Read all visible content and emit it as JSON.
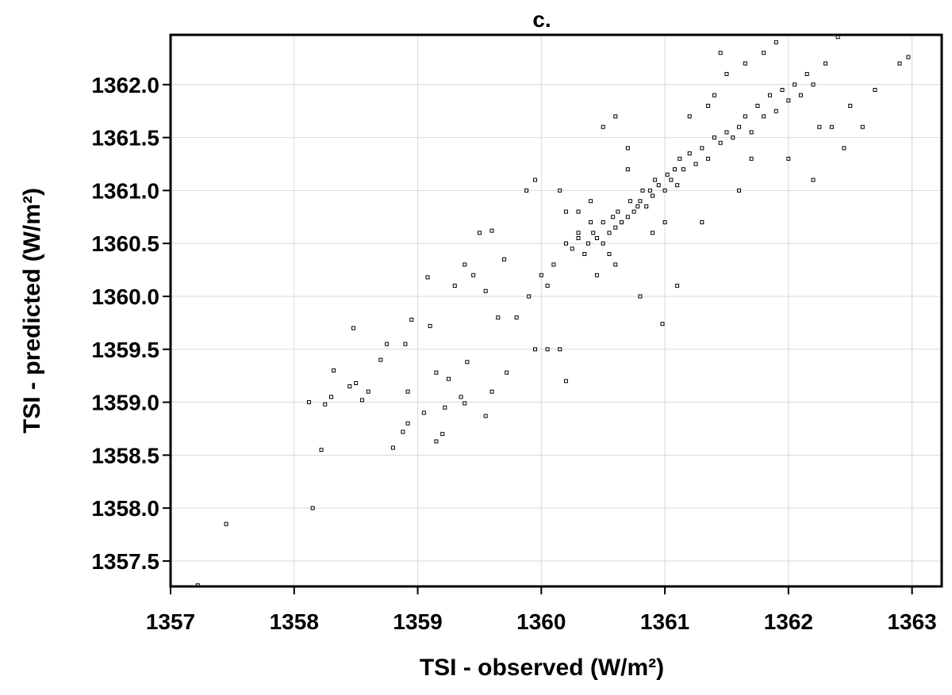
{
  "chart_data": {
    "type": "scatter",
    "title": "c.",
    "xlabel": "TSI - observed (W/m²)",
    "ylabel": "TSI - predicted (W/m²)",
    "color": "#000000",
    "grid": true,
    "xlim": [
      1357,
      1363.24
    ],
    "ylim": [
      1357.26,
      1362.47
    ],
    "xticks": [
      1357,
      1358,
      1359,
      1360,
      1361,
      1362,
      1363
    ],
    "yticks": [
      {
        "value": 1357.5,
        "label": "1357.5"
      },
      {
        "value": 1358,
        "label": "1358.0"
      },
      {
        "value": 1358.5,
        "label": "1358.5"
      },
      {
        "value": 1359,
        "label": "1359.0"
      },
      {
        "value": 1359.5,
        "label": "1359.5"
      },
      {
        "value": 1360,
        "label": "1360.0"
      },
      {
        "value": 1360.5,
        "label": "1360.5"
      },
      {
        "value": 1361,
        "label": "1361.0"
      },
      {
        "value": 1361.5,
        "label": "1361.5"
      },
      {
        "value": 1362,
        "label": "1362.0"
      }
    ],
    "x": [
      1357.22,
      1357.45,
      1358.15,
      1358.22,
      1358.12,
      1358.25,
      1358.3,
      1358.32,
      1358.48,
      1358.45,
      1358.5,
      1358.55,
      1358.6,
      1358.8,
      1358.75,
      1358.7,
      1358.88,
      1358.92,
      1358.95,
      1358.9,
      1358.92,
      1359.05,
      1359.1,
      1359.15,
      1359.15,
      1359.2,
      1359.22,
      1359.08,
      1359.25,
      1359.35,
      1359.38,
      1359.4,
      1359.55,
      1359.6,
      1359.72,
      1359.5,
      1359.6,
      1359.38,
      1359.45,
      1359.65,
      1359.8,
      1359.9,
      1359.95,
      1360.05,
      1360.15,
      1360.2,
      1359.88,
      1359.95,
      1360.0,
      1360.1,
      1360.2,
      1360.3,
      1360.35,
      1360.4,
      1360.25,
      1360.3,
      1360.38,
      1360.42,
      1360.45,
      1360.5,
      1360.5,
      1360.55,
      1360.58,
      1360.6,
      1360.62,
      1360.65,
      1360.7,
      1360.72,
      1360.75,
      1360.78,
      1360.8,
      1360.82,
      1360.85,
      1360.88,
      1360.9,
      1360.92,
      1360.95,
      1361.0,
      1361.02,
      1361.05,
      1361.08,
      1361.1,
      1361.12,
      1361.15,
      1361.2,
      1361.25,
      1361.3,
      1361.35,
      1361.4,
      1361.45,
      1361.5,
      1361.55,
      1361.6,
      1361.65,
      1361.7,
      1361.75,
      1361.8,
      1361.85,
      1361.9,
      1361.95,
      1362.0,
      1362.05,
      1362.1,
      1362.15,
      1362.2,
      1362.3,
      1362.4,
      1362.5,
      1362.6,
      1362.7,
      1362.9,
      1362.97,
      1361.8,
      1361.5,
      1360.98,
      1360.8,
      1361.1,
      1360.5,
      1360.6,
      1359.3,
      1360.4,
      1360.7,
      1361.3,
      1361.6,
      1362.0,
      1362.25,
      1361.4,
      1360.9,
      1360.6,
      1360.45,
      1360.3,
      1360.55,
      1360.7,
      1361.0,
      1361.2,
      1361.45,
      1361.7,
      1361.9,
      1362.2,
      1362.45,
      1360.2,
      1360.15,
      1359.7,
      1359.55,
      1360.05,
      1361.65,
      1361.35,
      1362.35
    ],
    "values": [
      1357.27,
      1357.85,
      1358.0,
      1358.55,
      1359.0,
      1358.98,
      1359.05,
      1359.3,
      1359.7,
      1359.15,
      1359.18,
      1359.02,
      1359.1,
      1358.57,
      1359.55,
      1359.4,
      1358.72,
      1358.8,
      1359.78,
      1359.55,
      1359.1,
      1358.9,
      1359.72,
      1359.28,
      1358.63,
      1358.7,
      1358.95,
      1360.18,
      1359.22,
      1359.05,
      1358.99,
      1359.38,
      1358.87,
      1359.1,
      1359.28,
      1360.6,
      1360.62,
      1360.3,
      1360.2,
      1359.8,
      1359.8,
      1360.0,
      1359.5,
      1359.5,
      1359.5,
      1359.2,
      1361.0,
      1361.1,
      1360.2,
      1360.3,
      1360.5,
      1360.6,
      1360.4,
      1360.7,
      1360.45,
      1360.55,
      1360.5,
      1360.6,
      1360.55,
      1360.5,
      1360.7,
      1360.6,
      1360.75,
      1360.65,
      1360.8,
      1360.7,
      1360.75,
      1360.9,
      1360.8,
      1360.85,
      1360.9,
      1361.0,
      1360.85,
      1361.0,
      1360.95,
      1361.1,
      1361.05,
      1361.0,
      1361.15,
      1361.1,
      1361.2,
      1361.05,
      1361.3,
      1361.2,
      1361.35,
      1361.25,
      1361.4,
      1361.3,
      1361.5,
      1361.45,
      1361.55,
      1361.5,
      1361.6,
      1361.7,
      1361.55,
      1361.8,
      1361.7,
      1361.9,
      1361.75,
      1361.95,
      1361.85,
      1362.0,
      1361.9,
      1362.1,
      1362.0,
      1362.2,
      1362.45,
      1361.8,
      1361.6,
      1361.95,
      1362.2,
      1362.26,
      1362.3,
      1362.1,
      1359.74,
      1360.0,
      1360.1,
      1361.6,
      1361.7,
      1360.1,
      1360.9,
      1361.2,
      1360.7,
      1361.0,
      1361.3,
      1361.6,
      1361.9,
      1360.6,
      1360.3,
      1360.2,
      1360.8,
      1360.4,
      1361.4,
      1360.7,
      1361.7,
      1362.3,
      1361.3,
      1362.4,
      1361.1,
      1361.4,
      1360.8,
      1361.0,
      1360.35,
      1360.05,
      1360.1,
      1362.2,
      1361.8,
      1361.6
    ]
  }
}
